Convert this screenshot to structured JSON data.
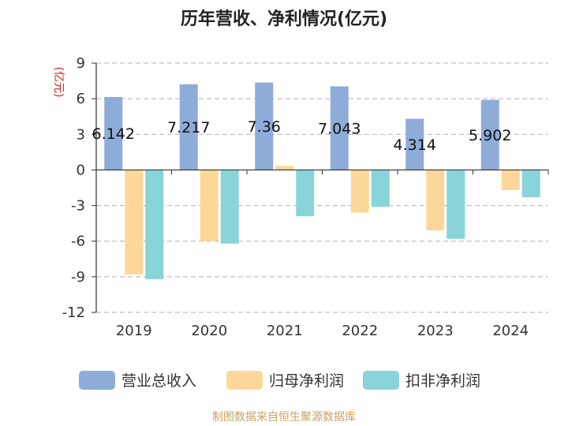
{
  "chart_data": {
    "type": "bar",
    "title": "历年营收、净利情况(亿元)",
    "unit_label": "(亿元)",
    "categories": [
      "2019",
      "2020",
      "2021",
      "2022",
      "2023",
      "2024"
    ],
    "series": [
      {
        "name": "营业总收入",
        "color": "#8eacd8",
        "values": [
          6.142,
          7.217,
          7.36,
          7.043,
          4.314,
          5.902
        ],
        "labels": [
          "6.142",
          "7.217",
          "7.36",
          "7.043",
          "4.314",
          "5.902"
        ]
      },
      {
        "name": "归母净利润",
        "color": "#fdd79a",
        "values": [
          -8.8,
          -6.0,
          0.35,
          -3.6,
          -5.1,
          -1.7
        ]
      },
      {
        "name": "扣非净利润",
        "color": "#88d4d8",
        "values": [
          -9.2,
          -6.2,
          -3.9,
          -3.1,
          -5.8,
          -2.3
        ]
      }
    ],
    "ylim": [
      -12,
      9
    ],
    "yticks": [
      "9",
      "6",
      "3",
      "0",
      "-3",
      "-6",
      "-9",
      "-12"
    ],
    "grid": true,
    "legend_position": "bottom"
  },
  "source_text": "制图数据来自恒生聚源数据库"
}
